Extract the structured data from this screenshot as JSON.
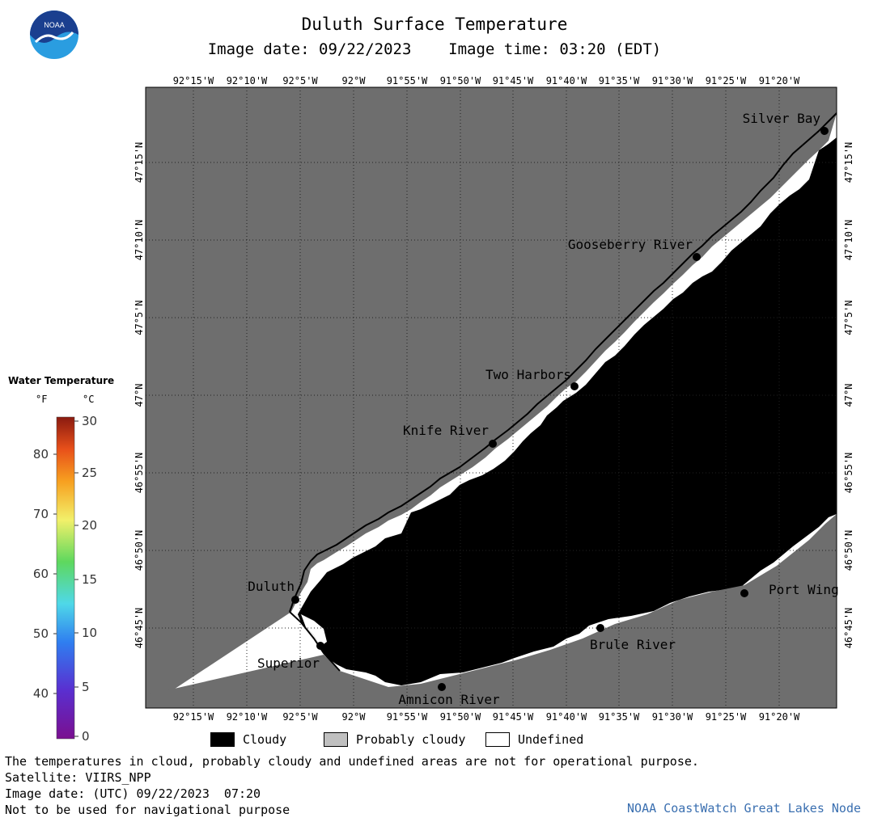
{
  "header": {
    "title": "Duluth Surface Temperature",
    "subtitle": "Image date: 09/22/2023    Image time: 03:20 (EDT)"
  },
  "logo": {
    "text": "NOAA",
    "colors": {
      "top": "#1a3f8f",
      "bottom": "#2a9de0"
    }
  },
  "map": {
    "colors": {
      "land": "#6e6e6e",
      "cloudy": "#000000",
      "undefined": "#ffffff",
      "grid": "#333333"
    },
    "lon_labels": [
      "92°15'W",
      "92°10'W",
      "92°5'W",
      "92°W",
      "91°55'W",
      "91°50'W",
      "91°45'W",
      "91°40'W",
      "91°35'W",
      "91°30'W",
      "91°25'W",
      "91°20'W"
    ],
    "lat_labels": [
      "47°15'N",
      "47°10'N",
      "47°5'N",
      "47°N",
      "46°55'N",
      "46°50'N",
      "46°45'N"
    ],
    "places": [
      {
        "name": "Silver Bay",
        "icon": "city-dot-icon"
      },
      {
        "name": "Gooseberry River",
        "icon": "city-dot-icon"
      },
      {
        "name": "Two Harbors",
        "icon": "city-dot-icon"
      },
      {
        "name": "Knife River",
        "icon": "city-dot-icon"
      },
      {
        "name": "Duluth",
        "icon": "city-dot-icon"
      },
      {
        "name": "Superior",
        "icon": "city-dot-icon"
      },
      {
        "name": "Amnicon River",
        "icon": "city-dot-icon"
      },
      {
        "name": "Brule River",
        "icon": "city-dot-icon"
      },
      {
        "name": "Port Wing",
        "icon": "city-dot-icon"
      }
    ]
  },
  "legend": {
    "title": "Water Temperature",
    "unit_f": "°F",
    "unit_c": "°C",
    "fahrenheit_ticks": [
      "80",
      "70",
      "60",
      "50",
      "40"
    ],
    "celsius_ticks": [
      "30",
      "25",
      "20",
      "15",
      "10",
      "5",
      "0"
    ]
  },
  "key": {
    "cloudy": "Cloudy",
    "probably_cloudy": "Probably cloudy",
    "undefined": "Undefined",
    "colors": {
      "cloudy": "#000000",
      "probably_cloudy": "#c0c0c0",
      "undefined": "#ffffff"
    }
  },
  "footer": {
    "line1": "The temperatures in cloud, probably cloudy and undefined areas are not for operational purpose.",
    "line2": "Satellite: VIIRS_NPP",
    "line3": "Image date: (UTC) 09/22/2023  07:20",
    "line4": "Not to be used for navigational purpose",
    "credit": "NOAA CoastWatch Great Lakes Node"
  }
}
